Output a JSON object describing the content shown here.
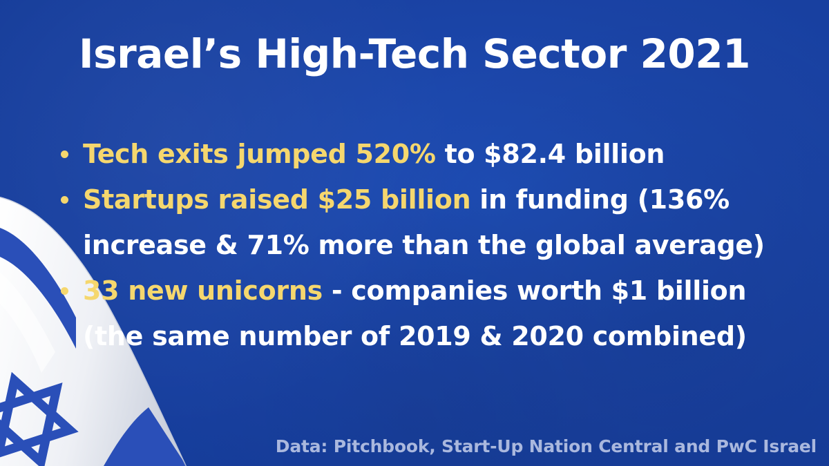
{
  "title": "Israel’s High-Tech Sector 2021",
  "bullets": [
    {
      "highlight": "Tech exits jumped 520%",
      "rest": " to $82.4 billion",
      "continuation": ""
    },
    {
      "highlight": "Startups raised $25 billion",
      "rest": " in funding (136%",
      "continuation": "increase & 71% more than the global average)"
    },
    {
      "highlight": "33 new unicorns",
      "rest": " - companies worth $1 billion",
      "continuation": "(the same number of 2019 & 2020 combined)"
    }
  ],
  "source": "Data: Pitchbook, Start-Up Nation Central and PwC Israel",
  "colors": {
    "background": "#1a43a5",
    "highlight": "#f5d76e",
    "text": "#ffffff",
    "source": "#aab8de",
    "flag_blue": "#2a4fb8",
    "flag_white": "#f2f4f8"
  }
}
